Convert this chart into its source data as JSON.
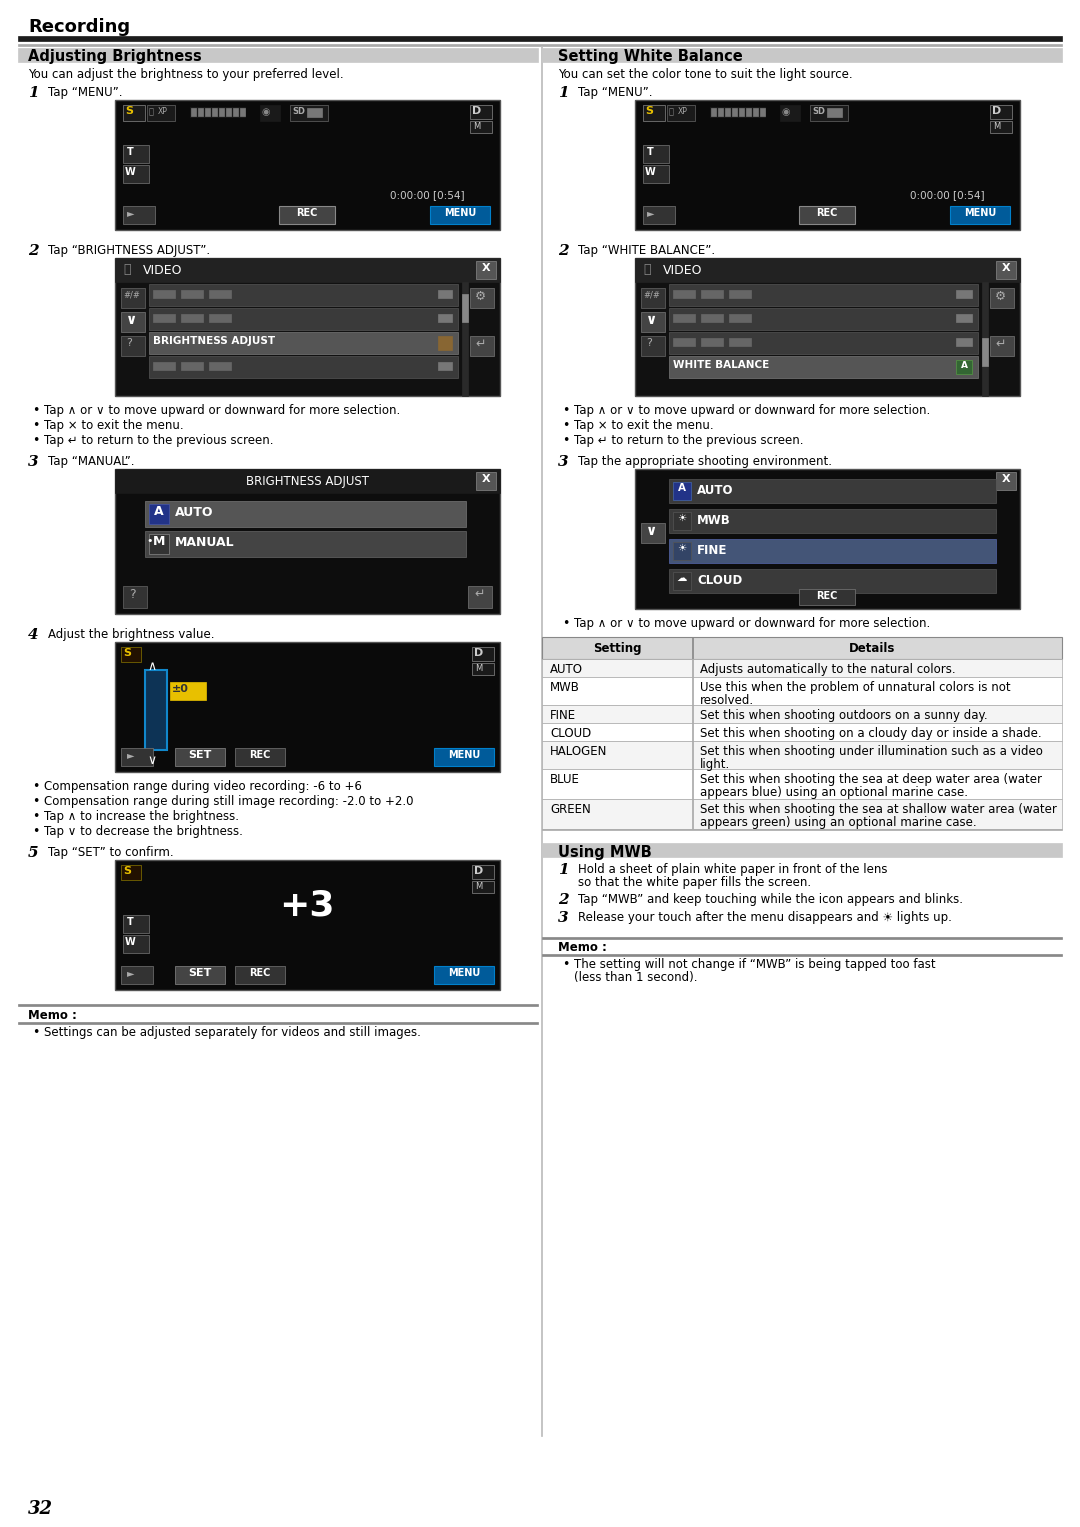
{
  "page_bg": "#ffffff",
  "page_number": "32",
  "header_title": "Recording",
  "section_left_title": "Adjusting Brightness",
  "section_right_title": "Setting White Balance",
  "section_left_subtitle": "You can adjust the brightness to your preferred level.",
  "section_right_subtitle": "You can set the color tone to suit the light source.",
  "left_steps": [
    {
      "num": "1",
      "text": "Tap “MENU”."
    },
    {
      "num": "2",
      "text": "Tap “BRIGHTNESS ADJUST”."
    },
    {
      "num": "3",
      "text": "Tap “MANUAL”."
    },
    {
      "num": "4",
      "text": "Adjust the brightness value."
    },
    {
      "num": "5",
      "text": "Tap “SET” to confirm."
    }
  ],
  "right_steps": [
    {
      "num": "1",
      "text": "Tap “MENU”."
    },
    {
      "num": "2",
      "text": "Tap “WHITE BALANCE”."
    },
    {
      "num": "3",
      "text": "Tap the appropriate shooting environment."
    }
  ],
  "bullet_points_menu": [
    "Tap ∧ or ∨ to move upward or downward for more selection.",
    "Tap × to exit the menu.",
    "Tap ↵ to return to the previous screen."
  ],
  "bullet_wb_3": [
    "Tap ∧ or ∨ to move upward or downward for more selection."
  ],
  "left_bullets_4": [
    "Compensation range during video recording: -6 to +6",
    "Compensation range during still image recording: -2.0 to +2.0",
    "Tap ∧ to increase the brightness.",
    "Tap ∨ to decrease the brightness."
  ],
  "memo_left_text": "Settings can be adjusted separately for videos and still images.",
  "memo_right_text": "The setting will not change if “MWB” is being tapped too fast (less than 1 second).",
  "wb_table_headers": [
    "Setting",
    "Details"
  ],
  "wb_table_rows": [
    [
      "AUTO",
      "Adjusts automatically to the natural colors."
    ],
    [
      "MWB",
      "Use this when the problem of unnatural colors is not\nresolved."
    ],
    [
      "FINE",
      "Set this when shooting outdoors on a sunny day."
    ],
    [
      "CLOUD",
      "Set this when shooting on a cloudy day or inside a shade."
    ],
    [
      "HALOGEN",
      "Set this when shooting under illumination such as a video\nlight."
    ],
    [
      "BLUE",
      "Set this when shooting the sea at deep water area (water\nappears blue) using an optional marine case."
    ],
    [
      "GREEN",
      "Set this when shooting the sea at shallow water area (water\nappears green) using an optional marine case."
    ]
  ],
  "using_mwb_title": "Using MWB",
  "using_mwb_steps": [
    {
      "num": "1",
      "text": "Hold a sheet of plain white paper in front of the lens so that the white paper fills the screen."
    },
    {
      "num": "2",
      "text": "Tap “MWB” and keep touching while the icon appears and blinks."
    },
    {
      "num": "3",
      "text": "Release your touch after the menu disappears and ☀ lights up."
    }
  ]
}
